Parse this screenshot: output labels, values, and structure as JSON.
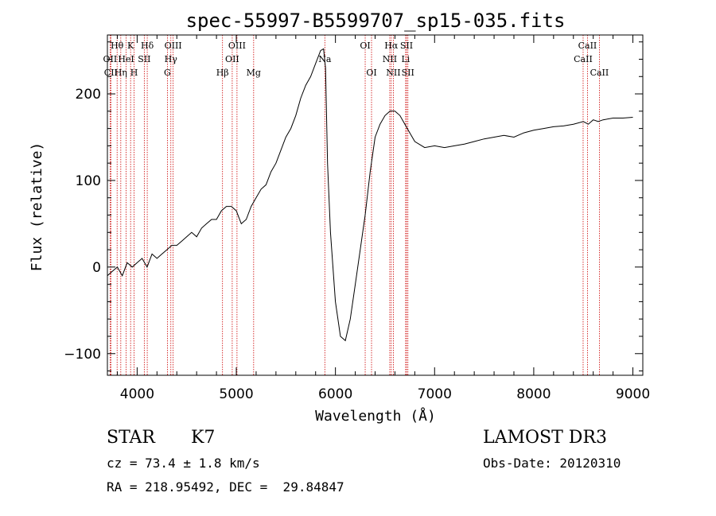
{
  "chart_data": {
    "type": "line",
    "title": "spec-55997-B5599707_sp15-035.fits",
    "xlabel": "Wavelength (Å)",
    "ylabel": "Flux (relative)",
    "xlim": [
      3700,
      9100
    ],
    "ylim": [
      -125,
      268
    ],
    "x_ticks": [
      4000,
      5000,
      6000,
      7000,
      8000,
      9000
    ],
    "y_ticks": [
      -100,
      0,
      100,
      200
    ],
    "grid": false,
    "colors": {
      "spectrum": "#000000",
      "lines": "#cc0000",
      "axes": "#000000"
    },
    "series": [
      {
        "x": [
          3700,
          3750,
          3800,
          3850,
          3900,
          3950,
          4000,
          4050,
          4100,
          4150,
          4200,
          4250,
          4300,
          4350,
          4400,
          4450,
          4500,
          4550,
          4600,
          4650,
          4700,
          4750,
          4800,
          4850,
          4900,
          4950,
          5000,
          5050,
          5100,
          5150,
          5200,
          5250,
          5300,
          5350,
          5400,
          5450,
          5500,
          5550,
          5600,
          5650,
          5700,
          5750,
          5800,
          5850,
          5880,
          5900,
          5920,
          5950,
          6000,
          6050,
          6100,
          6150,
          6200,
          6250,
          6300,
          6350,
          6400,
          6450,
          6500,
          6550,
          6600,
          6650,
          6700,
          6750,
          6800,
          6900,
          7000,
          7100,
          7200,
          7300,
          7400,
          7500,
          7600,
          7700,
          7800,
          7900,
          8000,
          8100,
          8200,
          8300,
          8400,
          8500,
          8550,
          8600,
          8650,
          8700,
          8800,
          8900,
          9000
        ],
        "y": [
          -10,
          -5,
          0,
          -10,
          5,
          0,
          5,
          10,
          0,
          15,
          10,
          15,
          20,
          25,
          25,
          30,
          35,
          40,
          35,
          45,
          50,
          55,
          55,
          65,
          70,
          70,
          65,
          50,
          55,
          70,
          80,
          90,
          95,
          110,
          120,
          135,
          150,
          160,
          175,
          195,
          210,
          220,
          235,
          250,
          252,
          230,
          120,
          40,
          -40,
          -80,
          -85,
          -60,
          -20,
          20,
          60,
          110,
          150,
          165,
          175,
          180,
          180,
          175,
          165,
          155,
          145,
          138,
          140,
          138,
          140,
          142,
          145,
          148,
          150,
          152,
          150,
          155,
          158,
          160,
          162,
          163,
          165,
          168,
          165,
          170,
          168,
          170,
          172,
          172,
          173
        ]
      }
    ],
    "spectral_lines": [
      {
        "label": "Hθ",
        "wave": 3798,
        "row": 0
      },
      {
        "label": "OII",
        "wave": 3727,
        "row": 1
      },
      {
        "label": "CII",
        "wave": 3735,
        "row": 2
      },
      {
        "label": "Hη",
        "wave": 3835,
        "row": 2
      },
      {
        "label": "K",
        "wave": 3934,
        "row": 0
      },
      {
        "label": "HeI",
        "wave": 3889,
        "row": 1
      },
      {
        "label": "H",
        "wave": 3969,
        "row": 2
      },
      {
        "label": "SII",
        "wave": 4072,
        "row": 1
      },
      {
        "label": "Hδ",
        "wave": 4102,
        "row": 0
      },
      {
        "label": "OIII",
        "wave": 4363,
        "row": 0
      },
      {
        "label": "Hγ",
        "wave": 4340,
        "row": 1
      },
      {
        "label": "G",
        "wave": 4305,
        "row": 2
      },
      {
        "label": "Hβ",
        "wave": 4861,
        "row": 2
      },
      {
        "label": "OIII",
        "wave": 5007,
        "row": 0
      },
      {
        "label": "OII",
        "wave": 4959,
        "row": 1
      },
      {
        "label": "Mg",
        "wave": 5175,
        "row": 2
      },
      {
        "label": "Na",
        "wave": 5893,
        "row": 1
      },
      {
        "label": "OI",
        "wave": 6300,
        "row": 0
      },
      {
        "label": "OI",
        "wave": 6364,
        "row": 2
      },
      {
        "label": "Hα",
        "wave": 6563,
        "row": 0
      },
      {
        "label": "NII",
        "wave": 6548,
        "row": 1
      },
      {
        "label": "NII",
        "wave": 6584,
        "row": 2
      },
      {
        "label": "SII",
        "wave": 6717,
        "row": 0
      },
      {
        "label": "Li",
        "wave": 6708,
        "row": 1
      },
      {
        "label": "SII",
        "wave": 6731,
        "row": 2
      },
      {
        "label": "CaII",
        "wave": 8542,
        "row": 0
      },
      {
        "label": "CaII",
        "wave": 8498,
        "row": 1
      },
      {
        "label": "CaII",
        "wave": 8662,
        "row": 2
      }
    ]
  },
  "footer": {
    "object_type": "STAR",
    "subclass": "K7",
    "survey": "LAMOST DR3",
    "velocity": "cz = 73.4 ± 1.8 km/s",
    "obs_date": "Obs-Date: 20120310",
    "coords": "RA = 218.95492, DEC =  29.84847"
  }
}
